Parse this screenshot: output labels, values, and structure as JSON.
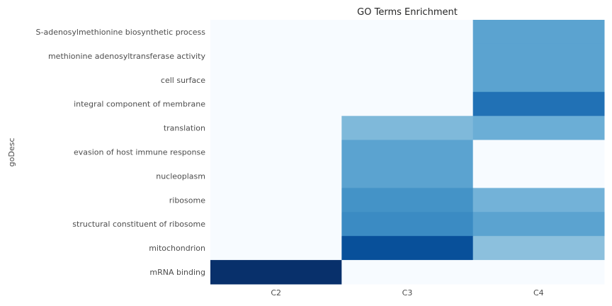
{
  "chart_data": {
    "type": "heatmap",
    "title": "GO Terms Enrichment",
    "xlabel": "",
    "ylabel": "goDesc",
    "columns": [
      "C2",
      "C3",
      "C4"
    ],
    "rows": [
      "S-adenosylmethionine biosynthetic process",
      "methionine adenosyltransferase activity",
      "cell surface",
      "integral component of membrane",
      "translation",
      "evasion of host immune response",
      "nucleoplasm",
      "ribosome",
      "structural constituent of ribosome",
      "mitochondrion",
      "mRNA binding"
    ],
    "values": [
      [
        0.0,
        0.0,
        0.55
      ],
      [
        0.0,
        0.0,
        0.55
      ],
      [
        0.0,
        0.0,
        0.55
      ],
      [
        0.0,
        0.0,
        0.75
      ],
      [
        0.0,
        0.45,
        0.5
      ],
      [
        0.0,
        0.55,
        0.0
      ],
      [
        0.0,
        0.55,
        0.0
      ],
      [
        0.0,
        0.62,
        0.48
      ],
      [
        0.0,
        0.65,
        0.55
      ],
      [
        0.0,
        0.88,
        0.42
      ],
      [
        1.0,
        0.0,
        0.0
      ]
    ],
    "colormap": "Blues",
    "grid": false,
    "legend": "none"
  }
}
